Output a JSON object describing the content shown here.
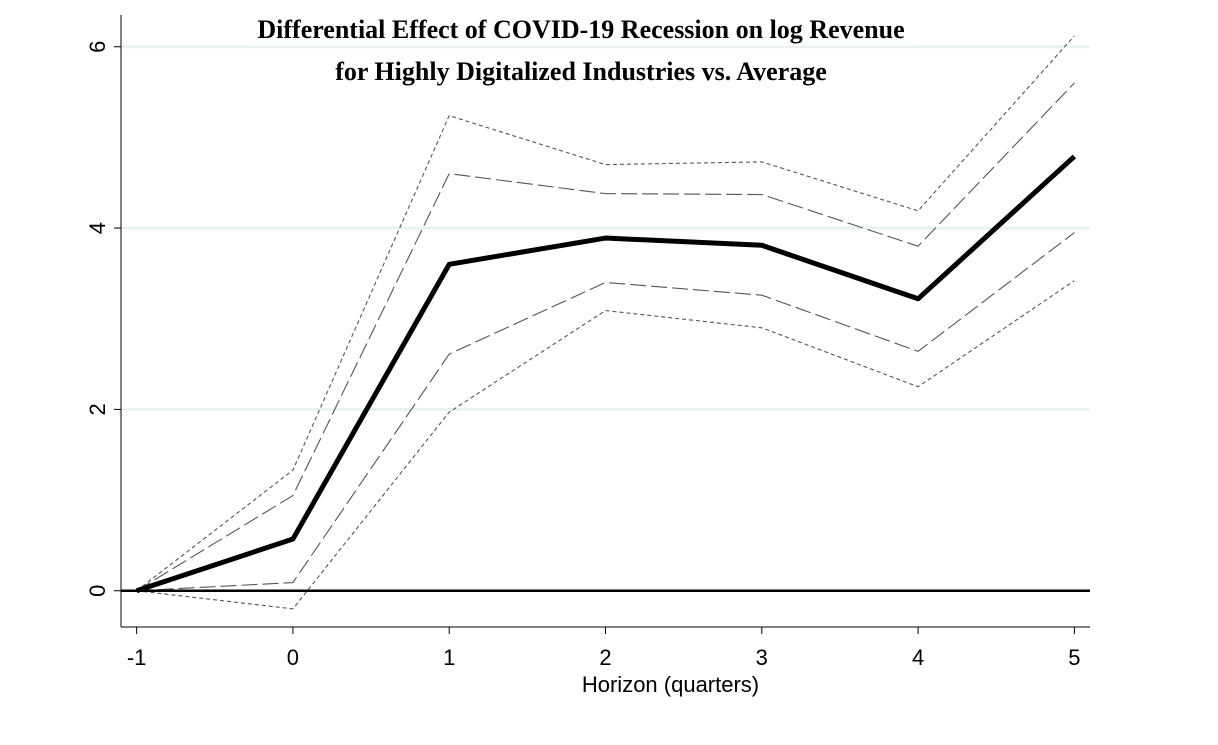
{
  "chart_data": {
    "type": "line",
    "title": [
      "Differential Effect of COVID-19 Recession on log Revenue",
      "for Highly Digitalized Industries vs. Average"
    ],
    "xlabel": "Horizon (quarters)",
    "ylabel": "",
    "x": [
      -1,
      0,
      1,
      2,
      3,
      4,
      5
    ],
    "x_tick_labels": [
      "-1",
      "0",
      "1",
      "2",
      "3",
      "4",
      "5"
    ],
    "y_ticks": [
      0,
      2,
      4,
      6
    ],
    "y_tick_labels": [
      "0",
      "2",
      "4",
      "6"
    ],
    "xlim": [
      -1.1,
      5.1
    ],
    "ylim": [
      -0.4,
      6.35
    ],
    "grid": "horizontal",
    "reference_line_y": 0,
    "series": [
      {
        "role": "estimate",
        "style": "solid-thick",
        "values": [
          0,
          0.57,
          3.6,
          3.89,
          3.81,
          3.22,
          4.79
        ]
      },
      {
        "role": "upper-inner",
        "style": "long-dash",
        "values": [
          0,
          1.05,
          4.6,
          4.38,
          4.37,
          3.8,
          5.6
        ]
      },
      {
        "role": "lower-inner",
        "style": "long-dash",
        "values": [
          0,
          0.09,
          2.61,
          3.4,
          3.26,
          2.64,
          3.95
        ]
      },
      {
        "role": "upper-outer",
        "style": "short-dash",
        "values": [
          0,
          1.33,
          5.24,
          4.7,
          4.73,
          4.19,
          6.12
        ]
      },
      {
        "role": "lower-outer",
        "style": "short-dash",
        "values": [
          0,
          -0.2,
          1.97,
          3.09,
          2.9,
          2.25,
          3.42
        ]
      }
    ],
    "colors": {
      "estimate": "#000000",
      "band": "#555555",
      "grid": "#eaf2f0",
      "zero_line": "#000000"
    }
  }
}
